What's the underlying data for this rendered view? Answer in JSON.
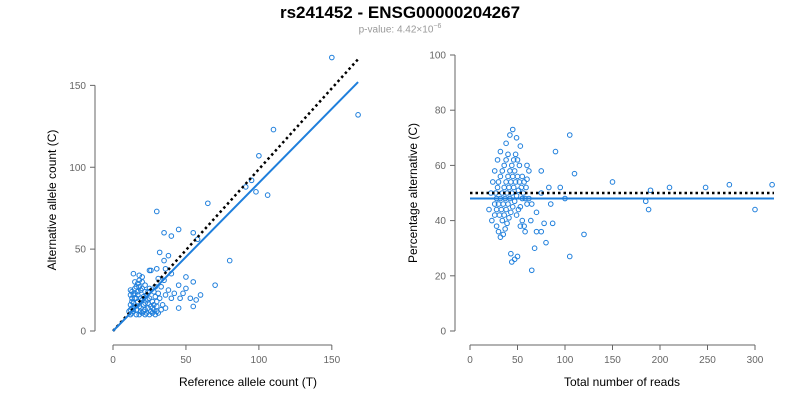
{
  "title": "rs241452 - ENSG00000204267",
  "subtitle": {
    "prefix": "p-value: 4.42×10",
    "exponent": "−6"
  },
  "colors": {
    "points": "#1f7fdc",
    "fit_line": "#1f7fdc",
    "reference_line": "#000000",
    "axis": "#666666"
  },
  "chart_data": [
    {
      "type": "scatter",
      "xlabel": "Reference allele count (T)",
      "ylabel": "Alternative allele count (C)",
      "xlim": [
        0,
        170
      ],
      "ylim": [
        0,
        160
      ],
      "xticks": [
        0,
        50,
        100,
        150
      ],
      "yticks": [
        0,
        50,
        100,
        150
      ],
      "grid": false,
      "fit_line": {
        "style": "solid",
        "x": [
          0,
          168
        ],
        "y": [
          0,
          152
        ]
      },
      "reference_line": {
        "style": "dotted",
        "x": [
          0,
          168
        ],
        "y": [
          0,
          166
        ]
      },
      "points": [
        [
          150,
          167
        ],
        [
          168,
          132
        ],
        [
          110,
          123
        ],
        [
          100,
          107
        ],
        [
          95,
          92
        ],
        [
          98,
          85
        ],
        [
          106,
          83
        ],
        [
          91,
          88
        ],
        [
          65,
          78
        ],
        [
          55,
          60
        ],
        [
          58,
          56
        ],
        [
          45,
          62
        ],
        [
          30,
          73
        ],
        [
          35,
          60
        ],
        [
          40,
          58
        ],
        [
          80,
          43
        ],
        [
          70,
          28
        ],
        [
          50,
          33
        ],
        [
          55,
          30
        ],
        [
          60,
          22
        ],
        [
          55,
          15
        ],
        [
          45,
          28
        ],
        [
          40,
          35
        ],
        [
          35,
          43
        ],
        [
          36,
          38
        ],
        [
          38,
          46
        ],
        [
          32,
          48
        ],
        [
          38,
          25
        ],
        [
          40,
          20
        ],
        [
          42,
          23
        ],
        [
          46,
          20
        ],
        [
          48,
          23
        ],
        [
          50,
          26
        ],
        [
          53,
          20
        ],
        [
          57,
          19
        ],
        [
          45,
          14
        ],
        [
          30,
          15
        ],
        [
          33,
          13
        ],
        [
          36,
          22
        ],
        [
          28,
          24
        ],
        [
          25,
          26
        ],
        [
          22,
          28
        ],
        [
          20,
          30
        ],
        [
          18,
          34
        ],
        [
          25,
          37
        ],
        [
          26,
          37
        ],
        [
          14,
          35
        ],
        [
          15,
          30
        ],
        [
          16,
          27
        ],
        [
          12,
          25
        ],
        [
          12,
          22
        ],
        [
          13,
          20
        ],
        [
          15,
          20
        ],
        [
          17,
          18
        ],
        [
          19,
          20
        ],
        [
          21,
          21
        ],
        [
          23,
          22
        ],
        [
          25,
          20
        ],
        [
          27,
          18
        ],
        [
          28,
          16
        ],
        [
          30,
          12
        ],
        [
          26,
          12
        ],
        [
          22,
          13
        ],
        [
          20,
          11
        ],
        [
          18,
          10
        ],
        [
          16,
          10
        ],
        [
          14,
          12
        ],
        [
          13,
          14
        ],
        [
          12,
          13
        ],
        [
          15,
          15
        ],
        [
          18,
          15
        ],
        [
          21,
          16
        ],
        [
          24,
          17
        ],
        [
          27,
          14
        ],
        [
          30,
          18
        ],
        [
          32,
          20
        ],
        [
          34,
          16
        ],
        [
          36,
          14
        ],
        [
          31,
          23
        ],
        [
          29,
          21
        ],
        [
          22,
          24
        ],
        [
          19,
          25
        ],
        [
          17,
          22
        ],
        [
          14,
          17
        ],
        [
          12,
          16
        ],
        [
          13,
          18
        ],
        [
          16,
          13
        ],
        [
          19,
          12
        ],
        [
          23,
          11
        ],
        [
          26,
          15
        ],
        [
          24,
          24
        ],
        [
          20,
          19
        ],
        [
          17,
          24
        ],
        [
          18,
          27
        ],
        [
          14,
          22
        ],
        [
          11,
          12
        ],
        [
          12,
          10
        ],
        [
          13,
          11
        ],
        [
          14,
          14
        ],
        [
          15,
          23
        ],
        [
          16,
          20
        ],
        [
          24,
          14
        ],
        [
          29,
          27
        ],
        [
          33,
          27
        ],
        [
          35,
          31
        ],
        [
          31,
          32
        ],
        [
          30,
          38
        ],
        [
          19,
          14
        ],
        [
          21,
          12
        ],
        [
          22,
          10
        ],
        [
          25,
          10
        ],
        [
          27,
          11
        ],
        [
          28,
          13
        ],
        [
          29,
          10
        ],
        [
          31,
          11
        ],
        [
          20,
          26
        ],
        [
          17,
          29
        ],
        [
          15,
          26
        ],
        [
          13,
          24
        ],
        [
          18,
          31
        ],
        [
          20,
          33
        ],
        [
          22,
          17
        ],
        [
          24,
          19
        ]
      ]
    },
    {
      "type": "scatter",
      "xlabel": "Total number of reads",
      "ylabel": "Percentage alternative (C)",
      "xlim": [
        0,
        320
      ],
      "ylim": [
        0,
        100
      ],
      "xticks": [
        0,
        50,
        100,
        150,
        200,
        250,
        300
      ],
      "yticks": [
        0,
        20,
        40,
        60,
        80,
        100
      ],
      "grid": false,
      "fit_line": {
        "style": "solid",
        "y": 48
      },
      "reference_line": {
        "style": "dotted",
        "y": 50
      },
      "points": [
        [
          318,
          53
        ],
        [
          300,
          44
        ],
        [
          273,
          53
        ],
        [
          248,
          52
        ],
        [
          210,
          52
        ],
        [
          190,
          51
        ],
        [
          185,
          47
        ],
        [
          188,
          44
        ],
        [
          150,
          54
        ],
        [
          120,
          35
        ],
        [
          105,
          27
        ],
        [
          110,
          57
        ],
        [
          105,
          71
        ],
        [
          90,
          65
        ],
        [
          95,
          52
        ],
        [
          100,
          48
        ],
        [
          85,
          46
        ],
        [
          83,
          52
        ],
        [
          87,
          39
        ],
        [
          80,
          32
        ],
        [
          75,
          36
        ],
        [
          70,
          36
        ],
        [
          65,
          22
        ],
        [
          70,
          43
        ],
        [
          65,
          46
        ],
        [
          62,
          48
        ],
        [
          60,
          60
        ],
        [
          75,
          58
        ],
        [
          75,
          50
        ],
        [
          78,
          39
        ],
        [
          58,
          36
        ],
        [
          55,
          56
        ],
        [
          60,
          55
        ],
        [
          53,
          67
        ],
        [
          49,
          70
        ],
        [
          45,
          73
        ],
        [
          42,
          71
        ],
        [
          38,
          68
        ],
        [
          32,
          65
        ],
        [
          29,
          62
        ],
        [
          26,
          58
        ],
        [
          24,
          54
        ],
        [
          22,
          50
        ],
        [
          20,
          44
        ],
        [
          23,
          40
        ],
        [
          26,
          42
        ],
        [
          28,
          38
        ],
        [
          30,
          36
        ],
        [
          32,
          34
        ],
        [
          34,
          40
        ],
        [
          36,
          42
        ],
        [
          38,
          44
        ],
        [
          40,
          46
        ],
        [
          42,
          48
        ],
        [
          44,
          50
        ],
        [
          46,
          52
        ],
        [
          48,
          54
        ],
        [
          50,
          56
        ],
        [
          52,
          54
        ],
        [
          54,
          52
        ],
        [
          56,
          50
        ],
        [
          58,
          48
        ],
        [
          60,
          46
        ],
        [
          28,
          44
        ],
        [
          30,
          46
        ],
        [
          32,
          48
        ],
        [
          34,
          50
        ],
        [
          36,
          52
        ],
        [
          38,
          54
        ],
        [
          40,
          56
        ],
        [
          42,
          58
        ],
        [
          44,
          60
        ],
        [
          46,
          62
        ],
        [
          48,
          64
        ],
        [
          50,
          62
        ],
        [
          52,
          60
        ],
        [
          35,
          35
        ],
        [
          37,
          37
        ],
        [
          39,
          39
        ],
        [
          41,
          41
        ],
        [
          43,
          43
        ],
        [
          45,
          45
        ],
        [
          47,
          47
        ],
        [
          49,
          49
        ],
        [
          51,
          51
        ],
        [
          53,
          45
        ],
        [
          55,
          40
        ],
        [
          57,
          38
        ],
        [
          47,
          26
        ],
        [
          44,
          25
        ],
        [
          43,
          28
        ],
        [
          50,
          27
        ],
        [
          30,
          54
        ],
        [
          32,
          56
        ],
        [
          34,
          58
        ],
        [
          36,
          60
        ],
        [
          38,
          62
        ],
        [
          40,
          64
        ],
        [
          27,
          50
        ],
        [
          29,
          52
        ],
        [
          31,
          42
        ],
        [
          33,
          44
        ],
        [
          35,
          46
        ],
        [
          37,
          48
        ],
        [
          39,
          50
        ],
        [
          41,
          52
        ],
        [
          43,
          54
        ],
        [
          45,
          56
        ],
        [
          47,
          58
        ],
        [
          49,
          42
        ],
        [
          51,
          44
        ],
        [
          53,
          38
        ],
        [
          55,
          48
        ],
        [
          57,
          54
        ],
        [
          59,
          52
        ],
        [
          26,
          46
        ],
        [
          28,
          48
        ],
        [
          62,
          58
        ],
        [
          64,
          40
        ],
        [
          68,
          30
        ]
      ]
    }
  ]
}
